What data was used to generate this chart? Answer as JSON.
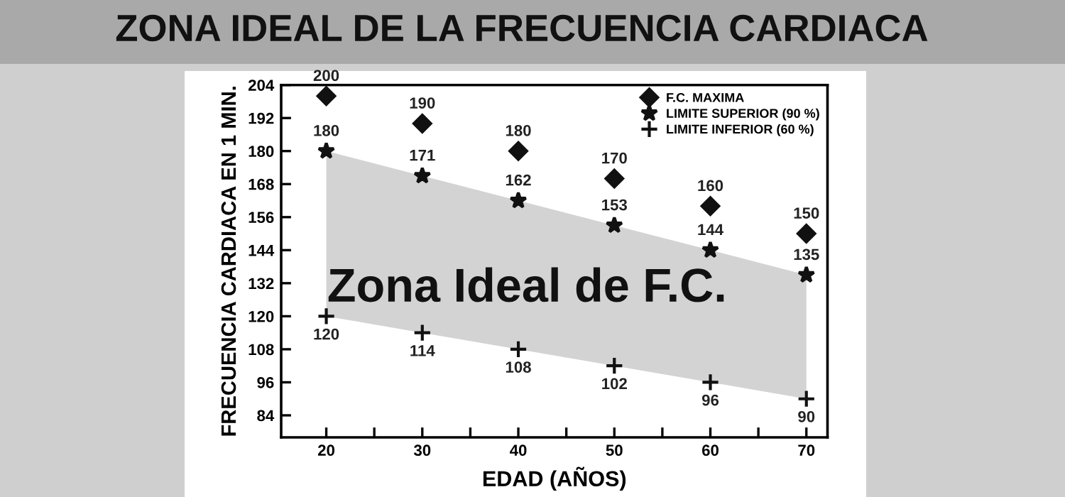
{
  "chart_data": {
    "type": "scatter",
    "title": "ZONA IDEAL DE LA FRECUENCIA CARDIACA",
    "xlabel": "EDAD (AÑOS)",
    "ylabel": "FRECUENCIA CARDIACA EN 1 MIN.",
    "x": [
      20,
      30,
      40,
      50,
      60,
      70
    ],
    "series": [
      {
        "name": "F.C. MAXIMA",
        "color": "#111111",
        "marker": "diamond",
        "values": [
          200,
          190,
          180,
          170,
          160,
          150
        ]
      },
      {
        "name": "LIMITE SUPERIOR (90 %)",
        "color": "#111111",
        "marker": "star",
        "values": [
          180,
          171,
          162,
          153,
          144,
          135
        ],
        "lower": [
          120,
          114,
          108,
          102,
          96,
          90
        ],
        "upper": [
          180,
          171,
          162,
          153,
          144,
          135
        ]
      },
      {
        "name": "LIMITE INFERIOR (60 %)",
        "color": "#111111",
        "marker": "cross",
        "values": [
          120,
          114,
          108,
          102,
          96,
          90
        ]
      }
    ],
    "annotations": [
      "Zona Ideal de F.C."
    ],
    "data_labels": true,
    "xlim": [
      15.3,
      72.2
    ],
    "xticks": [
      20,
      {
        "value": 25,
        "label": null
      },
      30,
      {
        "value": 35,
        "label": null
      },
      40,
      {
        "value": 45,
        "label": null
      },
      50,
      {
        "value": 55,
        "label": null
      },
      60,
      {
        "value": 65,
        "label": null
      },
      70
    ],
    "ylim": [
      76,
      204
    ],
    "yticks": [
      84,
      96,
      108,
      120,
      132,
      144,
      156,
      168,
      180,
      192,
      204
    ],
    "legend": "top right"
  }
}
